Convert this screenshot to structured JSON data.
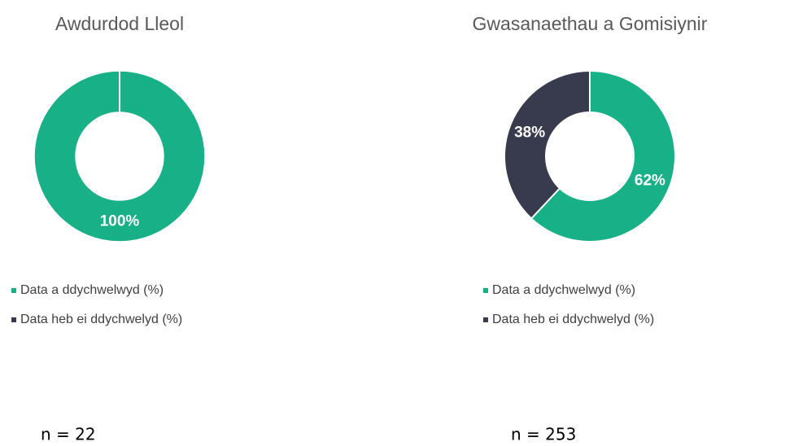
{
  "chart_data": [
    {
      "type": "pie",
      "donut": true,
      "title": "Awdurdod Lleol",
      "categories": [
        "Data a ddychwelwyd (%)",
        "Data heb ei ddychwelyd (%)"
      ],
      "values": [
        100,
        0
      ],
      "value_labels": [
        "100%",
        null
      ],
      "colors": [
        "#17b087",
        "#383a4e"
      ],
      "note": "n = 22"
    },
    {
      "type": "pie",
      "donut": true,
      "title": "Gwasanaethau a Gomisiynir",
      "categories": [
        "Data a ddychwelwyd (%)",
        "Data heb ei ddychwelyd (%)"
      ],
      "values": [
        62,
        38
      ],
      "value_labels": [
        "62%",
        "38%"
      ],
      "colors": [
        "#17b087",
        "#383a4e"
      ],
      "note": "n = 253"
    }
  ]
}
